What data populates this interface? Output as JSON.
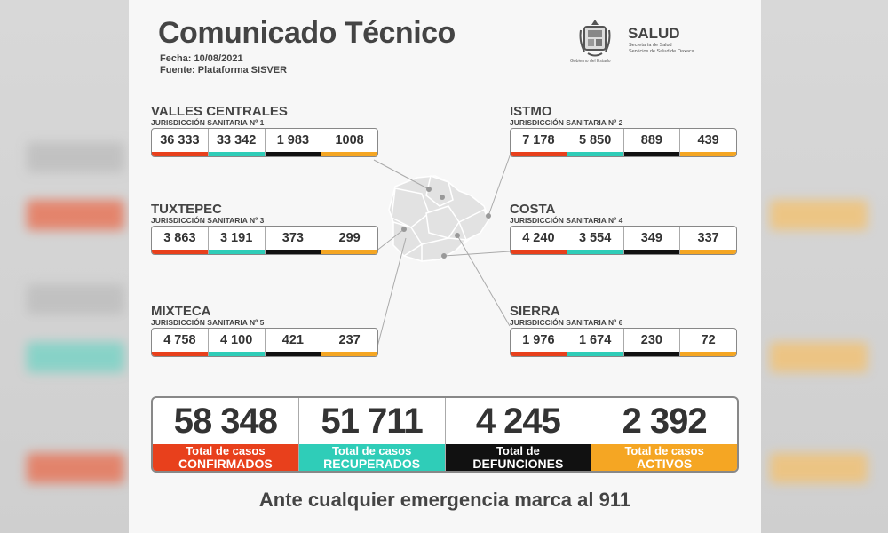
{
  "header": {
    "title": "Comunicado Técnico",
    "fecha": "Fecha: 10/08/2021",
    "fuente": "Fuente: Plataforma SISVER"
  },
  "branding": {
    "gov_caption": "Gobierno del Estado",
    "salud": "SALUD",
    "salud_sub1": "Secretaría de Salud",
    "salud_sub2": "Servicios de Salud de Oaxaca"
  },
  "colors": {
    "confirmados": "#e8401c",
    "recuperados": "#2fcdb8",
    "defunciones": "#111111",
    "activos": "#f5a623"
  },
  "regions": [
    {
      "name": "VALLES CENTRALES",
      "sub": "JURISDICCIÓN SANITARIA Nº 1",
      "values": [
        "36 333",
        "33 342",
        "1 983",
        "1008"
      ]
    },
    {
      "name": "ISTMO",
      "sub": "JURISDICCIÓN SANITARIA Nº 2",
      "values": [
        "7 178",
        "5 850",
        "889",
        "439"
      ]
    },
    {
      "name": "TUXTEPEC",
      "sub": "JURISDICCIÓN SANITARIA Nº 3",
      "values": [
        "3 863",
        "3 191",
        "373",
        "299"
      ]
    },
    {
      "name": "COSTA",
      "sub": "JURISDICCIÓN SANITARIA Nº 4",
      "values": [
        "4 240",
        "3 554",
        "349",
        "337"
      ]
    },
    {
      "name": "MIXTECA",
      "sub": "JURISDICCIÓN SANITARIA Nº 5",
      "values": [
        "4 758",
        "4 100",
        "421",
        "237"
      ]
    },
    {
      "name": "SIERRA",
      "sub": "JURISDICCIÓN SANITARIA Nº 6",
      "values": [
        "1 976",
        "1 674",
        "230",
        "72"
      ]
    }
  ],
  "totals": [
    {
      "value": "58 348",
      "line1": "Total de casos",
      "line2": "CONFIRMADOS"
    },
    {
      "value": "51 711",
      "line1": "Total de casos",
      "line2": "RECUPERADOS"
    },
    {
      "value": "4 245",
      "line1": "Total de",
      "line2": "DEFUNCIONES"
    },
    {
      "value": "2 392",
      "line1": "Total de casos",
      "line2": "ACTIVOS"
    }
  ],
  "footer": "Ante cualquier emergencia marca al 911"
}
